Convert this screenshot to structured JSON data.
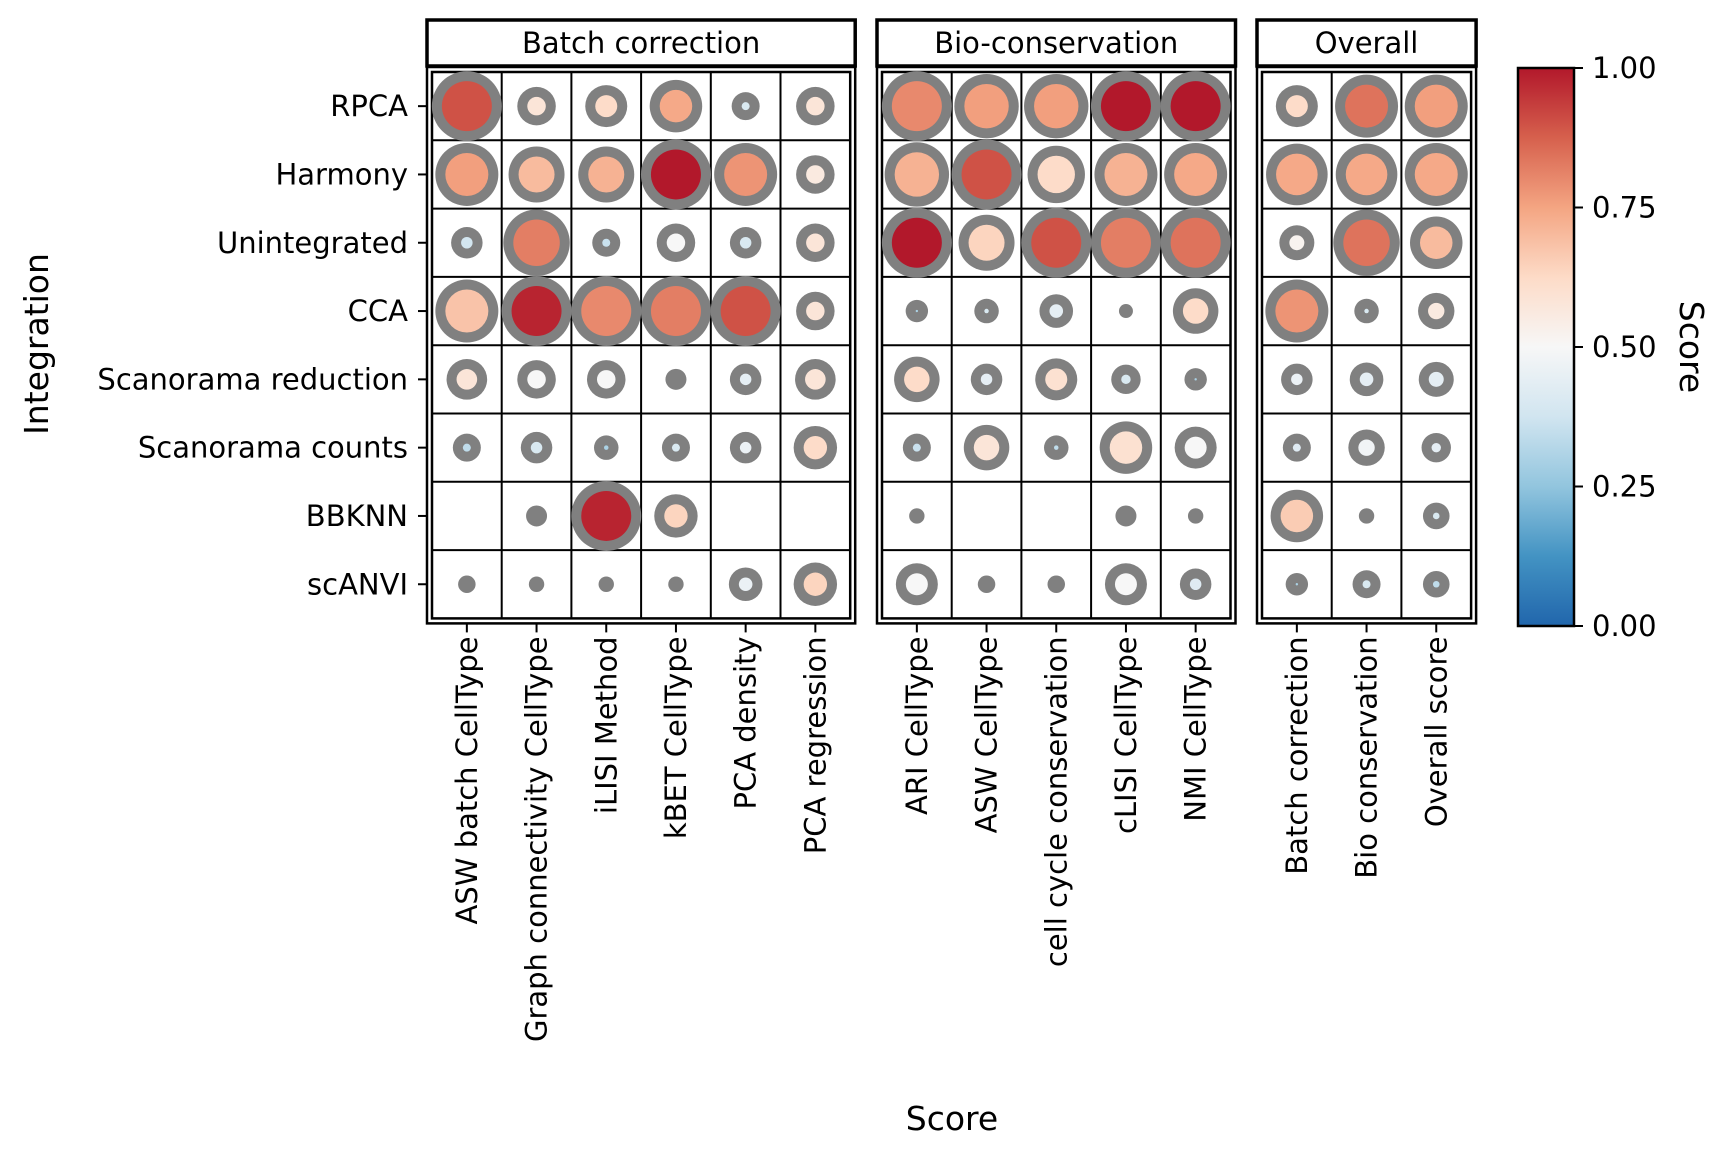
{
  "chart_data": {
    "type": "dot-heatmap",
    "title": "",
    "xlabel": "Score",
    "ylabel": "Integration",
    "rows": [
      "RPCA",
      "Harmony",
      "Unintegrated",
      "CCA",
      "Scanorama reduction",
      "Scanorama counts",
      "BBKNN",
      "scANVI"
    ],
    "panels": [
      {
        "title": "Batch correction",
        "columns": [
          "ASW batch CellType",
          "Graph connectivity CellType",
          "iLISI Method",
          "kBET CellType",
          "PCA density",
          "PCA regression"
        ],
        "values": [
          [
            0.9,
            0.58,
            0.62,
            0.74,
            0.4,
            0.58
          ],
          [
            0.76,
            0.7,
            0.72,
            1.0,
            0.78,
            0.56
          ],
          [
            0.38,
            0.82,
            0.36,
            0.5,
            0.4,
            0.58
          ],
          [
            0.68,
            0.98,
            0.8,
            0.82,
            0.9,
            0.58
          ],
          [
            0.58,
            0.5,
            0.5,
            0.3,
            0.44,
            0.58
          ],
          [
            0.34,
            0.4,
            0.3,
            0.4,
            0.46,
            0.62
          ],
          [
            null,
            0.3,
            0.98,
            0.64,
            null,
            null
          ],
          [
            0.3,
            0.3,
            0.3,
            0.3,
            0.46,
            0.64
          ]
        ],
        "sizes": [
          [
            1.0,
            0.55,
            0.6,
            0.75,
            0.4,
            0.55
          ],
          [
            0.9,
            0.8,
            0.8,
            1.0,
            0.9,
            0.55
          ],
          [
            0.45,
            0.95,
            0.4,
            0.55,
            0.45,
            0.55
          ],
          [
            0.9,
            1.0,
            1.0,
            1.0,
            1.0,
            0.55
          ],
          [
            0.58,
            0.55,
            0.55,
            0.3,
            0.45,
            0.58
          ],
          [
            0.4,
            0.45,
            0.35,
            0.4,
            0.45,
            0.62
          ],
          [
            null,
            0.3,
            1.0,
            0.62,
            null,
            null
          ],
          [
            0.25,
            0.22,
            0.22,
            0.22,
            0.48,
            0.62
          ]
        ]
      },
      {
        "title": "Bio-conservation",
        "columns": [
          "ARI CellType",
          "ASW CellType",
          "cell cycle conservation",
          "cLISI CellType",
          "NMI CellType"
        ],
        "values": [
          [
            0.8,
            0.76,
            0.76,
            1.0,
            1.0
          ],
          [
            0.72,
            0.9,
            0.62,
            0.72,
            0.74
          ],
          [
            1.0,
            0.64,
            0.9,
            0.82,
            0.84
          ],
          [
            0.3,
            0.4,
            0.44,
            0.3,
            0.62
          ],
          [
            0.62,
            0.44,
            0.6,
            0.4,
            0.3
          ],
          [
            0.36,
            0.58,
            0.34,
            0.6,
            0.5
          ],
          [
            0.3,
            null,
            null,
            0.3,
            0.3
          ],
          [
            0.5,
            0.3,
            0.3,
            0.5,
            0.42
          ]
        ],
        "sizes": [
          [
            1.0,
            0.92,
            0.92,
            1.0,
            1.0
          ],
          [
            0.92,
            1.0,
            0.82,
            0.9,
            0.9
          ],
          [
            1.0,
            0.8,
            1.0,
            1.0,
            1.0
          ],
          [
            0.32,
            0.35,
            0.48,
            0.2,
            0.65
          ],
          [
            0.65,
            0.45,
            0.6,
            0.42,
            0.32
          ],
          [
            0.4,
            0.65,
            0.35,
            0.75,
            0.6
          ],
          [
            0.22,
            null,
            null,
            0.3,
            0.22
          ],
          [
            0.6,
            0.25,
            0.25,
            0.6,
            0.45
          ]
        ]
      },
      {
        "title": "Overall",
        "columns": [
          "Batch correction",
          "Bio conservation",
          "Overall score"
        ],
        "values": [
          [
            0.62,
            0.84,
            0.76
          ],
          [
            0.74,
            0.74,
            0.74
          ],
          [
            0.52,
            0.84,
            0.7
          ],
          [
            0.78,
            0.4,
            0.56
          ],
          [
            0.46,
            0.44,
            0.44
          ],
          [
            0.42,
            0.48,
            0.44
          ],
          [
            0.66,
            0.3,
            0.4
          ],
          [
            0.3,
            0.4,
            0.34
          ]
        ],
        "sizes": [
          [
            0.6,
            0.9,
            0.9
          ],
          [
            0.88,
            0.88,
            0.9
          ],
          [
            0.5,
            0.95,
            0.75
          ],
          [
            0.9,
            0.35,
            0.52
          ],
          [
            0.45,
            0.48,
            0.5
          ],
          [
            0.4,
            0.52,
            0.42
          ],
          [
            0.75,
            0.22,
            0.38
          ],
          [
            0.32,
            0.4,
            0.38
          ]
        ]
      }
    ],
    "colorbar": {
      "title": "Score",
      "ticks": [
        "1.00",
        "0.75",
        "0.50",
        "0.25",
        "0.00"
      ],
      "range": [
        0,
        1
      ],
      "colormap": "RdBu_r",
      "stops": [
        "#2166ac",
        "#4393c3",
        "#92c5de",
        "#d1e5f0",
        "#f7f7f7",
        "#fddbc7",
        "#f4a582",
        "#d6604d",
        "#b2182b"
      ]
    },
    "ring_color": "#808080",
    "grid": true
  }
}
